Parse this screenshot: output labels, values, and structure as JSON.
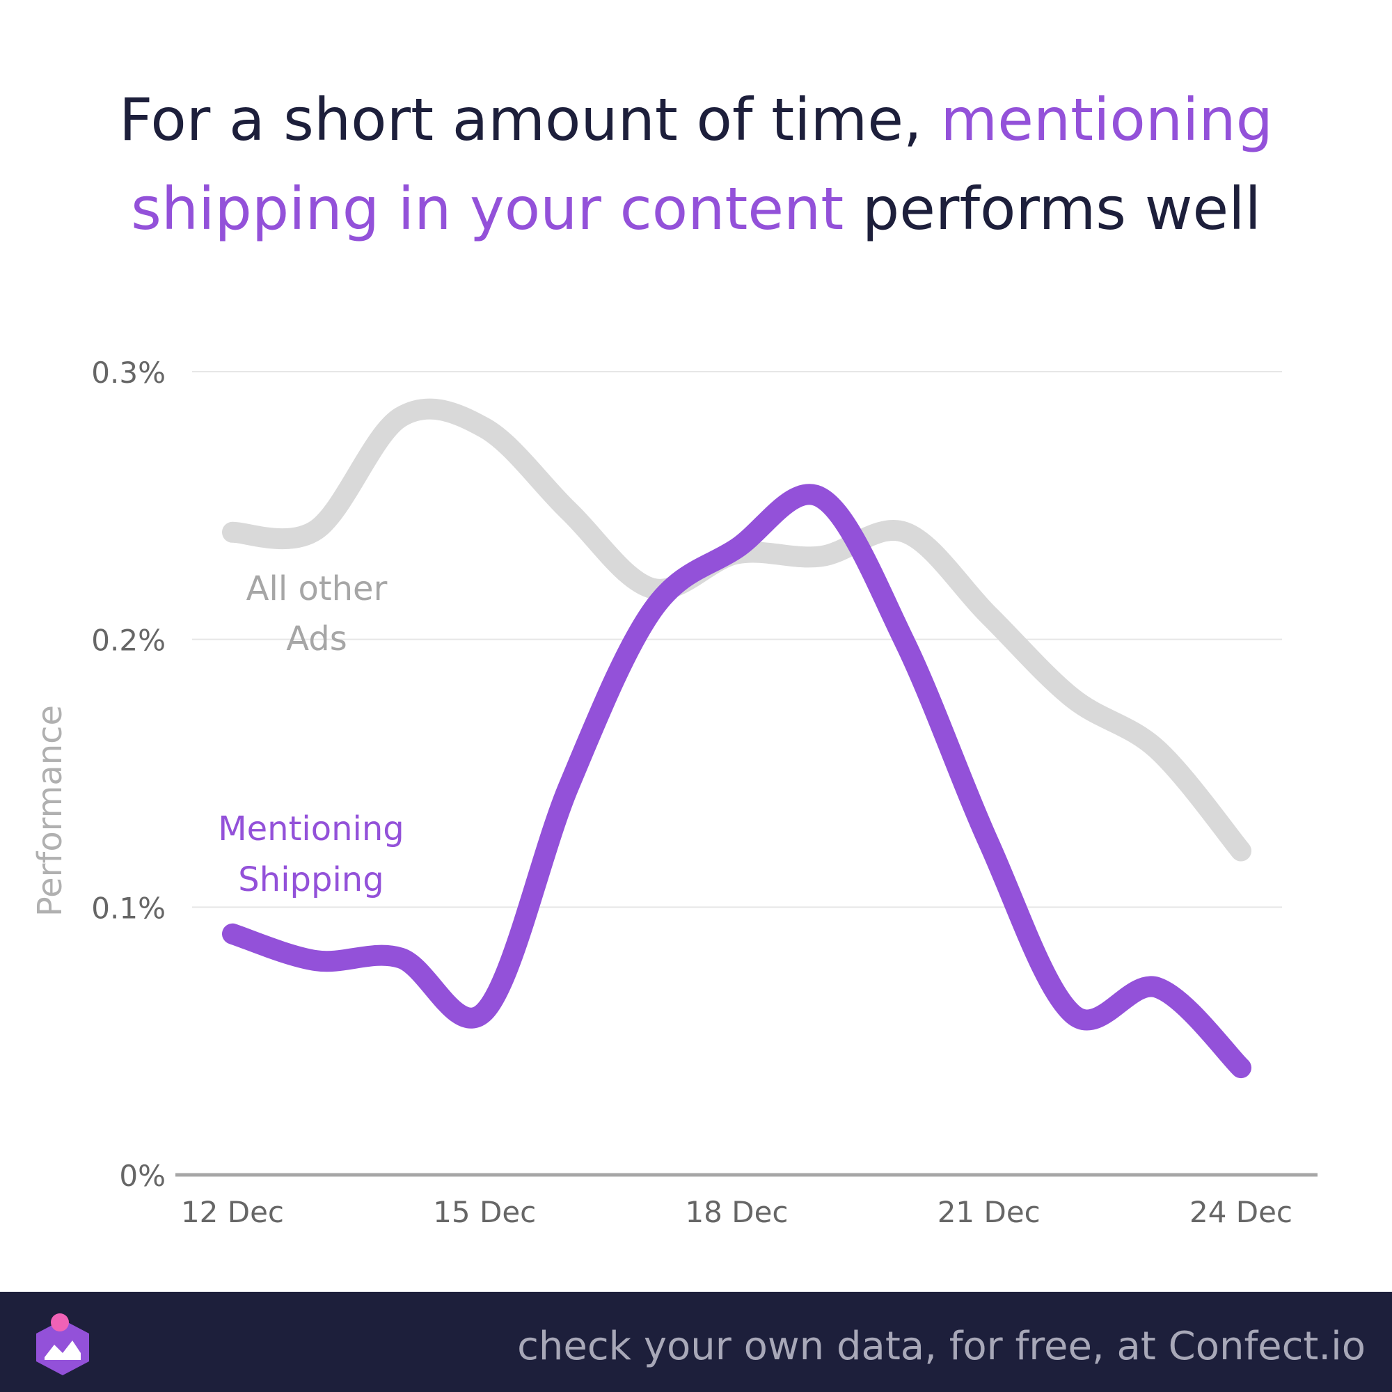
{
  "headline": {
    "part1": "For a short amount of time, ",
    "highlight1": "mentioning",
    "highlight2": "shipping in your content",
    "part2": " performs well"
  },
  "colors": {
    "accent": "#9351d9",
    "other_series": "#d9d9d9",
    "title": "#1d1f3b",
    "footer_bg": "#1d1f3b",
    "logo_dot": "#f062b6"
  },
  "footer": {
    "text": "check your own data, for free, at Confect.io",
    "logo_icon": "confect-logo-icon"
  },
  "chart_data": {
    "type": "line",
    "title": "For a short amount of time, mentioning shipping in your content performs well",
    "ylabel": "Performance",
    "xlabel": "",
    "x": [
      "12 Dec",
      "13 Dec",
      "14 Dec",
      "15 Dec",
      "16 Dec",
      "17 Dec",
      "18 Dec",
      "19 Dec",
      "20 Dec",
      "21 Dec",
      "22 Dec",
      "23 Dec",
      "24 Dec"
    ],
    "x_tick_labels": [
      "12 Dec",
      "15 Dec",
      "18 Dec",
      "21 Dec",
      "24 Dec"
    ],
    "y_ticks": [
      0,
      0.1,
      0.2,
      0.3
    ],
    "y_tick_labels": [
      "0%",
      "0.1%",
      "0.2%",
      "0.3%"
    ],
    "ylim": [
      0,
      0.3
    ],
    "grid": true,
    "series": [
      {
        "name": "All other Ads",
        "label_lines": [
          "All other",
          "Ads"
        ],
        "color": "#d9d9d9",
        "values": [
          0.24,
          0.241,
          0.283,
          0.279,
          0.248,
          0.219,
          0.232,
          0.231,
          0.24,
          0.209,
          0.178,
          0.159,
          0.121
        ]
      },
      {
        "name": "Mentioning Shipping",
        "label_lines": [
          "Mentioning",
          "Shipping"
        ],
        "color": "#9351d9",
        "values": [
          0.09,
          0.08,
          0.081,
          0.061,
          0.145,
          0.211,
          0.234,
          0.253,
          0.199,
          0.124,
          0.06,
          0.07,
          0.04
        ]
      }
    ]
  }
}
